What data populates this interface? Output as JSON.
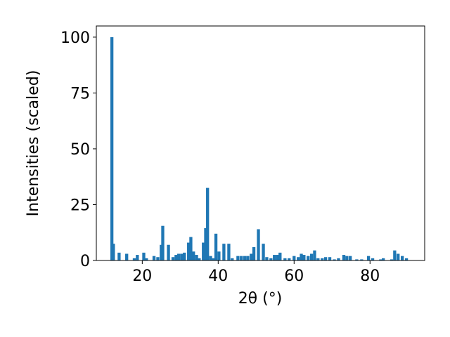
{
  "chart_data": {
    "type": "bar",
    "xlabel": "2θ (°)",
    "ylabel": "Intensities (scaled)",
    "x": [
      12.0,
      12.4,
      13.9,
      15.9,
      17.9,
      18.7,
      20.4,
      21.1,
      23.1,
      24.1,
      25.0,
      25.4,
      26.9,
      28.1,
      28.9,
      29.6,
      30.4,
      31.1,
      32.2,
      32.8,
      33.5,
      34.3,
      35.0,
      36.1,
      36.7,
      37.2,
      38.0,
      38.7,
      39.4,
      40.2,
      41.5,
      42.8,
      43.7,
      45.2,
      46.1,
      47.0,
      47.8,
      48.7,
      49.4,
      50.6,
      51.9,
      52.8,
      53.9,
      54.8,
      55.6,
      56.3,
      57.6,
      58.7,
      60.0,
      61.1,
      61.9,
      62.6,
      63.7,
      64.6,
      65.4,
      66.3,
      67.4,
      68.3,
      69.4,
      70.6,
      71.7,
      73.1,
      73.9,
      74.8,
      76.5,
      77.8,
      79.6,
      80.7,
      82.8,
      83.5,
      85.7,
      86.5,
      87.4,
      88.5,
      89.6
    ],
    "values": [
      100,
      7.5,
      3.5,
      3,
      1,
      2.5,
      3.5,
      1,
      2,
      1.5,
      7,
      15.5,
      7,
      1.5,
      2.5,
      3,
      3,
      3.5,
      8,
      10.5,
      4,
      2.5,
      1,
      8,
      14.5,
      32.5,
      2,
      1,
      12,
      4,
      7.5,
      7.5,
      1,
      2,
      2,
      2,
      2,
      3,
      6,
      14,
      7.5,
      1.5,
      1,
      2.5,
      2.5,
      3.5,
      1,
      1,
      2,
      1.5,
      3,
      2.5,
      2,
      3,
      4.5,
      1,
      1,
      1.5,
      1.5,
      0.5,
      1,
      2.5,
      2,
      2,
      0.5,
      0.5,
      2,
      1,
      0.5,
      1,
      0.5,
      4.5,
      3,
      2,
      1
    ],
    "color": "#1f77b4",
    "xlim": [
      7.9,
      94.4
    ],
    "xticks": [
      20,
      40,
      60,
      80
    ],
    "ylim": [
      0,
      105
    ],
    "yticks": [
      0,
      25,
      50,
      75,
      100
    ]
  }
}
